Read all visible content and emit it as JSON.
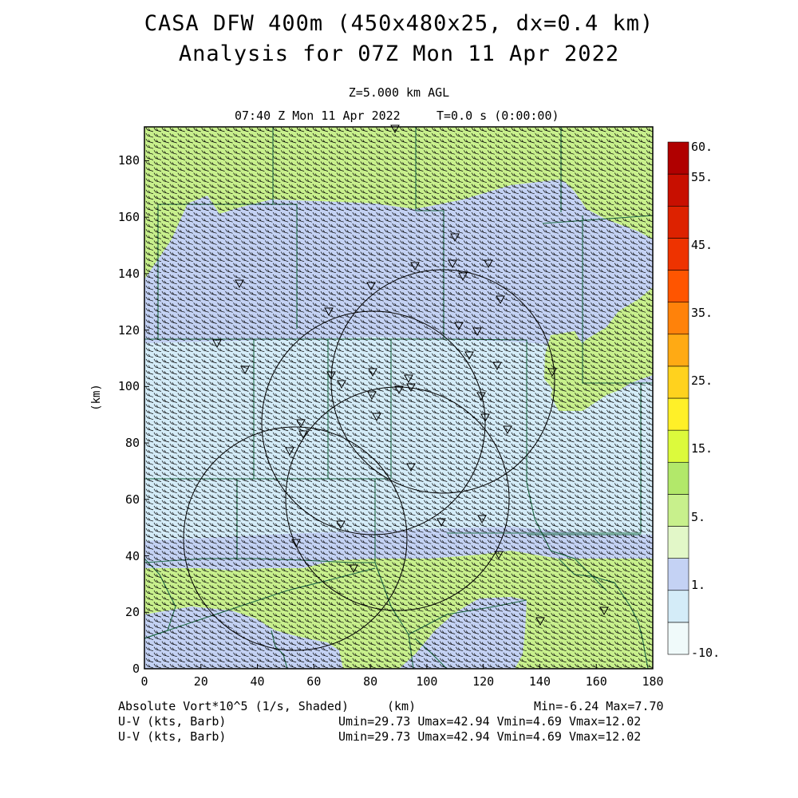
{
  "title_line1": "CASA DFW 400m (450x480x25, dx=0.4 km)",
  "title_line2": "Analysis for 07Z Mon 11 Apr 2022",
  "level": "Z=5.000 km AGL",
  "valid_time": "07:40 Z Mon 11 Apr 2022",
  "forecast_time": "T=0.0 s (0:00:00)",
  "axes": {
    "xlabel": "(km)",
    "ylabel": "(km)",
    "x_range": [
      0,
      180
    ],
    "y_range": [
      0,
      192
    ],
    "x_ticks": [
      "0",
      "20",
      "40",
      "60",
      "80",
      "100",
      "120",
      "140",
      "160",
      "180"
    ],
    "y_ticks": [
      "0",
      "20",
      "40",
      "60",
      "80",
      "100",
      "120",
      "140",
      "160",
      "180"
    ]
  },
  "colorbar": {
    "labels": [
      "60.",
      "55.",
      "45.",
      "35.",
      "25.",
      "15.",
      "5.",
      "1.",
      "-10."
    ],
    "colors": [
      "#f0fafa",
      "#d4ecf8",
      "#c4d2f4",
      "#e2f7c8",
      "#c8f08c",
      "#b2e86a",
      "#dcfa3c",
      "#fff028",
      "#ffd21e",
      "#ffaa14",
      "#ff820a",
      "#ff5500",
      "#ee3300",
      "#dd2200",
      "#c80f00",
      "#b00000"
    ]
  },
  "shading_colors": {
    "light_blue": "#c4d2f4",
    "light_green": "#c8f08c",
    "very_light_blue": "#d4ecf8"
  },
  "footer": {
    "field": "Absolute Vort*10^5 (1/s, Shaded)",
    "xunit": "(km)",
    "minmax": "Min=-6.24 Max=7.70",
    "overlay1": "U-V (kts, Barb)",
    "stats1": "Umin=29.73 Umax=42.94 Vmin=4.69 Vmax=12.02",
    "overlay2": "U-V (kts, Barb)",
    "stats2": "Umin=29.73 Umax=42.94 Vmin=4.69 Vmax=12.02"
  },
  "icons": {
    "radar_site_marker": "triangle-down-icon",
    "wind_barb": "wind-barb-icon"
  }
}
